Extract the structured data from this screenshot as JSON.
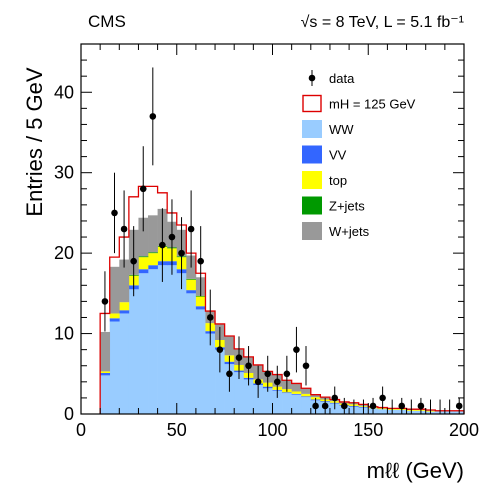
{
  "header": {
    "experiment": "CMS",
    "energy_label": "√s = 8 TeV, L = 5.1 fb⁻¹"
  },
  "chart_data": {
    "type": "bar",
    "title": "",
    "xlabel": "mℓℓ (GeV)",
    "ylabel": "Entries /  5 GeV",
    "xlim": [
      0,
      200
    ],
    "ylim": [
      0,
      46
    ],
    "x_ticks": [
      0,
      50,
      100,
      150,
      200
    ],
    "y_ticks": [
      0,
      10,
      20,
      30,
      40
    ],
    "bin_width": 5,
    "bin_edges_start": [
      10,
      15,
      20,
      25,
      30,
      35,
      40,
      45,
      50,
      55,
      60,
      65,
      70,
      75,
      80,
      85,
      90,
      95,
      100,
      105,
      110,
      115,
      120,
      125,
      130,
      135,
      140,
      145,
      150,
      155,
      160,
      165,
      170,
      175,
      180,
      185,
      190,
      195
    ],
    "stack_order": [
      "WW",
      "VV",
      "top",
      "Z+jets",
      "W+jets"
    ],
    "stack": [
      {
        "name": "WW",
        "color": "#99ccff",
        "values": [
          4.8,
          11.5,
          12.5,
          15.5,
          17.5,
          18.0,
          18.5,
          18.5,
          17.5,
          15.0,
          13.0,
          10.0,
          8.0,
          6.2,
          5.2,
          4.3,
          3.6,
          3.2,
          2.9,
          2.6,
          2.4,
          2.1,
          1.7,
          1.5,
          1.3,
          1.0,
          0.9,
          0.8,
          0.7,
          0.6,
          0.5,
          0.5,
          0.4,
          0.4,
          0.3,
          0.3,
          0.3,
          0.3
        ]
      },
      {
        "name": "VV",
        "color": "#3366ff",
        "values": [
          0.3,
          0.4,
          0.4,
          0.5,
          0.5,
          0.5,
          0.5,
          0.5,
          0.5,
          0.4,
          0.4,
          0.3,
          0.3,
          0.3,
          0.2,
          0.2,
          0.2,
          0.2,
          0.1,
          0.1,
          0.1,
          0.1,
          0.1,
          0.1,
          0.1,
          0.1,
          0.1,
          0.1,
          0.0,
          0.0,
          0.0,
          0.0,
          0.0,
          0.0,
          0.0,
          0.0,
          0.0,
          0.0
        ]
      },
      {
        "name": "top",
        "color": "#ffff00",
        "values": [
          0.2,
          0.6,
          1.0,
          1.2,
          1.5,
          1.5,
          1.8,
          1.6,
          1.5,
          1.3,
          1.2,
          1.0,
          0.9,
          0.8,
          0.7,
          0.6,
          0.5,
          0.5,
          0.4,
          0.4,
          0.3,
          0.3,
          0.3,
          0.2,
          0.2,
          0.2,
          0.2,
          0.1,
          0.1,
          0.1,
          0.1,
          0.1,
          0.1,
          0.1,
          0.1,
          0.0,
          0.0,
          0.0
        ]
      },
      {
        "name": "Z+jets",
        "color": "#009900",
        "values": [
          0.0,
          0.0,
          0.0,
          0.1,
          0.1,
          0.1,
          0.1,
          0.1,
          0.1,
          0.1,
          0.1,
          0.0,
          0.0,
          0.0,
          0.0,
          0.0,
          0.0,
          0.0,
          0.0,
          0.0,
          0.0,
          0.0,
          0.0,
          0.0,
          0.0,
          0.0,
          0.0,
          0.0,
          0.0,
          0.0,
          0.0,
          0.0,
          0.0,
          0.0,
          0.0,
          0.0,
          0.0,
          0.0
        ]
      },
      {
        "name": "W+jets",
        "color": "#999999",
        "values": [
          4.9,
          5.8,
          5.3,
          5.6,
          4.8,
          4.6,
          4.6,
          3.2,
          3.3,
          2.9,
          2.3,
          1.5,
          2.0,
          2.4,
          2.0,
          2.0,
          1.8,
          1.4,
          1.5,
          1.1,
          1.0,
          0.7,
          0.3,
          0.3,
          0.2,
          0.2,
          0.2,
          0.2,
          0.1,
          0.1,
          0.1,
          0.1,
          0.1,
          0.1,
          0.1,
          0.1,
          0.1,
          0.1
        ]
      }
    ],
    "signal": {
      "name": "mH = 125 GeV",
      "color": "#dd0000",
      "total_values": [
        12.5,
        19.5,
        22.0,
        27.0,
        28.3,
        28.3,
        27.5,
        25.0,
        23.5,
        20.0,
        17.5,
        12.8,
        11.2,
        9.7,
        8.1,
        7.1,
        6.1,
        5.3,
        4.9,
        4.2,
        3.8,
        3.2,
        2.4,
        2.1,
        1.8,
        1.5,
        1.4,
        1.2,
        0.9,
        0.8,
        0.7,
        0.7,
        0.6,
        0.6,
        0.5,
        0.4,
        0.4,
        0.4
      ]
    },
    "data": {
      "name": "data",
      "x": [
        12.5,
        17.5,
        22.5,
        27.5,
        32.5,
        37.5,
        42.5,
        47.5,
        52.5,
        57.5,
        62.5,
        67.5,
        72.5,
        77.5,
        82.5,
        87.5,
        92.5,
        97.5,
        102.5,
        107.5,
        112.5,
        117.5,
        122.5,
        127.5,
        132.5,
        137.5,
        142.5,
        147.5,
        152.5,
        157.5,
        162.5,
        167.5,
        172.5,
        177.5,
        182.5,
        187.5,
        192.5,
        197.5
      ],
      "y": [
        14,
        25,
        23,
        19,
        28,
        37,
        21,
        22,
        20,
        23,
        19,
        12,
        8,
        5,
        7,
        6,
        4,
        5,
        4,
        5,
        8,
        6,
        1,
        1,
        2,
        1,
        0,
        0,
        1,
        2,
        0,
        1,
        0,
        1,
        0,
        0,
        0,
        1
      ]
    },
    "legend": {
      "position": "top-right",
      "entries": [
        {
          "label": "data",
          "kind": "marker",
          "color": "#000000"
        },
        {
          "label": "mH = 125 GeV",
          "kind": "outline",
          "color": "#dd0000"
        },
        {
          "label": "WW",
          "kind": "fill",
          "color": "#99ccff"
        },
        {
          "label": "VV",
          "kind": "fill",
          "color": "#3366ff"
        },
        {
          "label": "top",
          "kind": "fill",
          "color": "#ffff00"
        },
        {
          "label": "Z+jets",
          "kind": "fill",
          "color": "#009900"
        },
        {
          "label": "W+jets",
          "kind": "fill",
          "color": "#999999"
        }
      ]
    }
  }
}
